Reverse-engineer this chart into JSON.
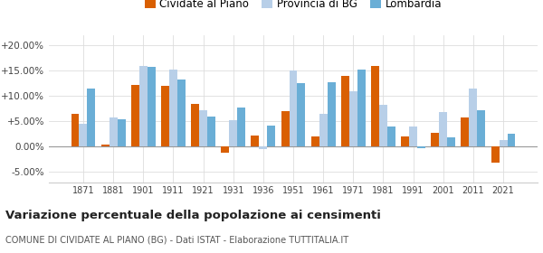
{
  "years": [
    1871,
    1881,
    1901,
    1911,
    1921,
    1931,
    1936,
    1951,
    1961,
    1971,
    1981,
    1991,
    2001,
    2011,
    2021
  ],
  "cividate": [
    6.5,
    0.4,
    12.2,
    12.0,
    8.5,
    -1.2,
    2.2,
    7.0,
    2.0,
    14.0,
    16.0,
    2.0,
    2.7,
    5.8,
    -3.2
  ],
  "provincia_bg": [
    4.5,
    5.8,
    16.0,
    15.3,
    7.2,
    5.3,
    -0.5,
    15.0,
    6.5,
    11.0,
    8.2,
    4.0,
    6.8,
    11.5,
    1.3
  ],
  "lombardia": [
    11.5,
    5.5,
    15.8,
    13.3,
    6.0,
    7.8,
    4.2,
    12.5,
    12.8,
    15.3,
    4.0,
    -0.3,
    1.9,
    7.2,
    2.5
  ],
  "color_cividate": "#d95f02",
  "color_provincia": "#b8cfe8",
  "color_lombardia": "#6aaed6",
  "ylim_min": -7.0,
  "ylim_max": 22.0,
  "title": "Variazione percentuale della popolazione ai censimenti",
  "subtitle": "COMUNE DI CIVIDATE AL PIANO (BG) - Dati ISTAT - Elaborazione TUTTITALIA.IT",
  "legend_labels": [
    "Cividate al Piano",
    "Provincia di BG",
    "Lombardia"
  ],
  "yticks": [
    -5.0,
    0.0,
    5.0,
    10.0,
    15.0,
    20.0
  ]
}
